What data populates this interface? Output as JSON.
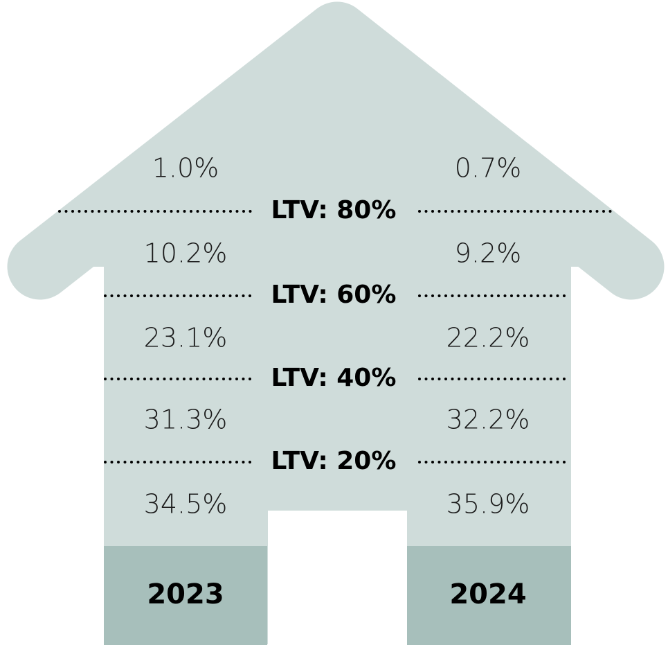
{
  "columns": [
    {
      "year": "2023",
      "values": [
        "1.0%",
        "10.2%",
        "23.1%",
        "31.3%",
        "34.5%"
      ]
    },
    {
      "year": "2024",
      "values": [
        "0.7%",
        "9.2%",
        "22.2%",
        "32.2%",
        "35.9%"
      ]
    }
  ],
  "thresholds": [
    "LTV: 80%",
    "LTV: 60%",
    "LTV: 40%",
    "LTV: 20%"
  ]
}
